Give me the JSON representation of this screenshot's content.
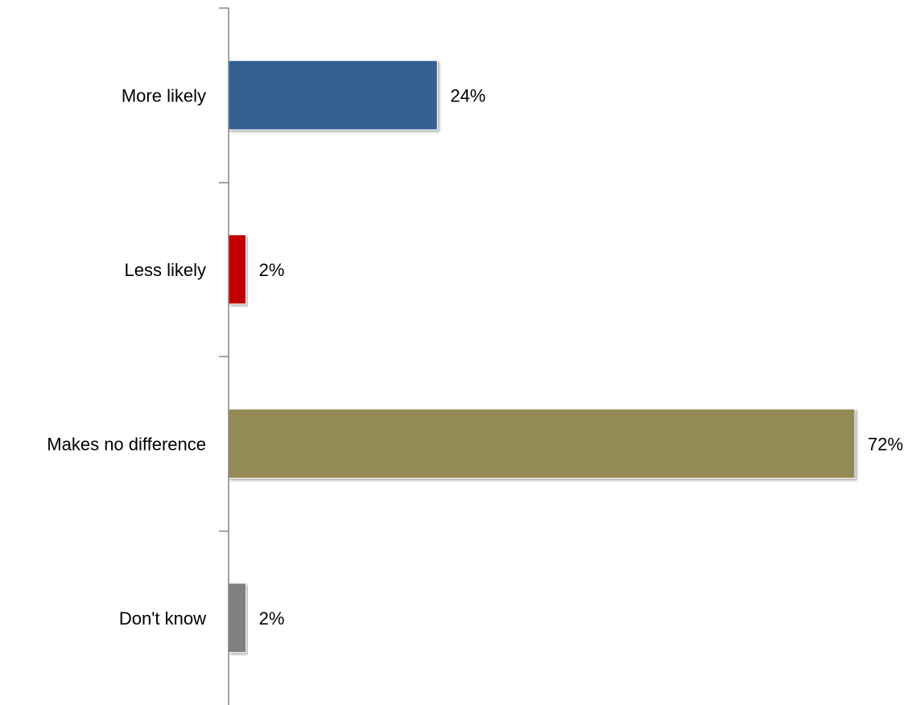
{
  "chart_data": {
    "type": "bar",
    "orientation": "horizontal",
    "title": "",
    "xlabel": "",
    "ylabel": "",
    "categories": [
      "More likely",
      "Less likely",
      "Makes no difference",
      "Don't know"
    ],
    "values": [
      24,
      2,
      72,
      2
    ],
    "value_labels": [
      "24%",
      "2%",
      "72%",
      "2%"
    ],
    "colors": [
      "#366092",
      "#C00000",
      "#948A54",
      "#7F7F7F"
    ],
    "unit": "%",
    "xlim": [
      0,
      72
    ],
    "grid": false,
    "legend": "none"
  }
}
